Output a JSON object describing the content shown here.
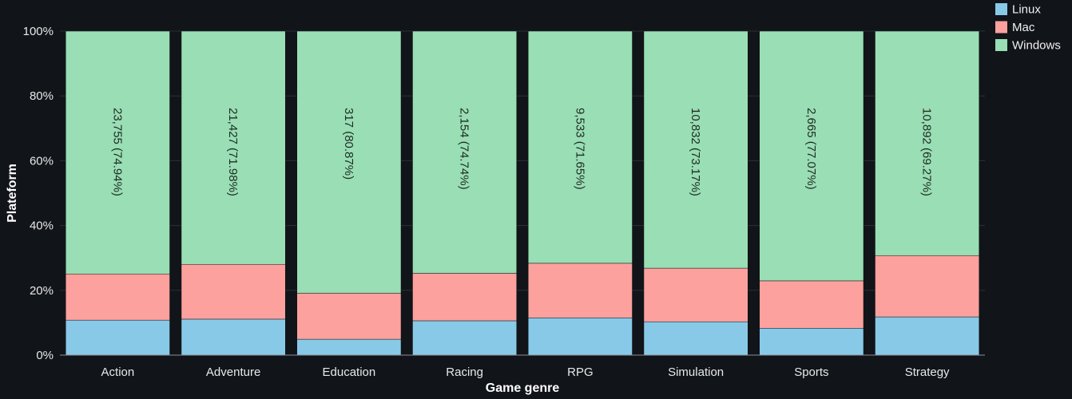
{
  "chart_data": {
    "type": "bar",
    "stacked": true,
    "normalized": true,
    "xlabel": "Game genre",
    "ylabel": "Plateform",
    "ylim": [
      0,
      100
    ],
    "yticks": [
      "0%",
      "20%",
      "40%",
      "60%",
      "80%",
      "100%"
    ],
    "grid": true,
    "legend_position": "top-right",
    "categories": [
      "Action",
      "Adventure",
      "Education",
      "Racing",
      "RPG",
      "Simulation",
      "Sports",
      "Strategy"
    ],
    "series": [
      {
        "name": "Linux",
        "color": "#89c9e8",
        "values": [
          10.8,
          11.1,
          4.9,
          10.6,
          11.5,
          10.3,
          8.3,
          11.8
        ]
      },
      {
        "name": "Mac",
        "color": "#fca19d",
        "values": [
          14.26,
          16.92,
          14.23,
          14.66,
          16.85,
          16.53,
          14.63,
          18.93
        ]
      },
      {
        "name": "Windows",
        "color": "#99deb4",
        "values": [
          74.94,
          71.98,
          80.87,
          74.74,
          71.65,
          73.17,
          77.07,
          69.27
        ]
      }
    ],
    "windows_labels": [
      "23,755 (74.94%)",
      "21,427 (71.98%)",
      "317 (80.87%)",
      "2,154 (74.74%)",
      "9,533 (71.65%)",
      "10,832 (73.17%)",
      "2,665 (77.07%)",
      "10,892 (69.27%)"
    ]
  }
}
